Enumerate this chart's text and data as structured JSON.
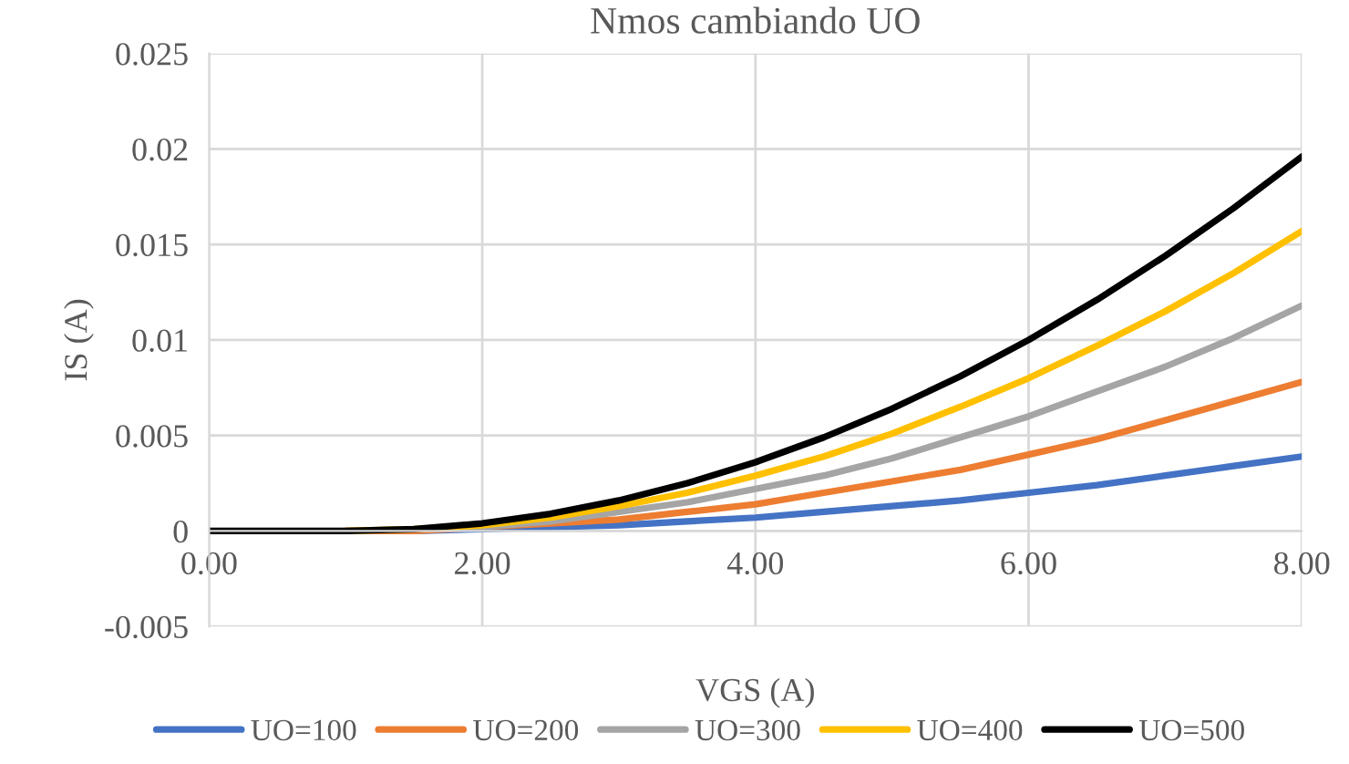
{
  "chart_data": {
    "type": "line",
    "title": "Nmos cambiando UO",
    "xlabel": "VGS (A)",
    "ylabel": "IS (A)",
    "x": [
      0,
      0.5,
      1,
      1.5,
      2,
      2.5,
      3,
      3.5,
      4,
      4.5,
      5,
      5.5,
      6,
      6.5,
      7,
      7.5,
      8
    ],
    "series": [
      {
        "name": "UO=100",
        "color": "#4472c4",
        "values": [
          null,
          null,
          0,
          0,
          0.0001,
          0.0002,
          0.0003,
          0.0005,
          0.0007,
          0.001,
          0.0013,
          0.0016,
          0.002,
          0.0024,
          0.0029,
          0.0034,
          0.0039
        ]
      },
      {
        "name": "UO=200",
        "color": "#ed7d31",
        "values": [
          null,
          null,
          0,
          0,
          0.0002,
          0.0004,
          0.0006,
          0.001,
          0.0014,
          0.002,
          0.0026,
          0.0032,
          0.004,
          0.0048,
          0.0058,
          0.0068,
          0.0078
        ]
      },
      {
        "name": "UO=300",
        "color": "#a5a5a5",
        "values": [
          0,
          0,
          0,
          0.0001,
          0.0002,
          0.0005,
          0.001,
          0.0015,
          0.0022,
          0.0029,
          0.0038,
          0.0049,
          0.006,
          0.0073,
          0.0086,
          0.0101,
          0.0118
        ]
      },
      {
        "name": "UO=400",
        "color": "#ffc000",
        "values": [
          null,
          null,
          0,
          0.0001,
          0.0003,
          0.0007,
          0.0013,
          0.002,
          0.0029,
          0.0039,
          0.0051,
          0.0065,
          0.008,
          0.0097,
          0.0115,
          0.0135,
          0.0157
        ]
      },
      {
        "name": "UO=500",
        "color": "#000000",
        "values": [
          0,
          0,
          0,
          0.0001,
          0.0004,
          0.0009,
          0.0016,
          0.0025,
          0.0036,
          0.0049,
          0.0064,
          0.0081,
          0.01,
          0.0121,
          0.0144,
          0.0169,
          0.0196
        ]
      }
    ],
    "xlim": [
      0,
      8
    ],
    "xticks": [
      {
        "value": 0,
        "label": "0.00"
      },
      {
        "value": 2,
        "label": "2.00"
      },
      {
        "value": 4,
        "label": "4.00"
      },
      {
        "value": 6,
        "label": "6.00"
      },
      {
        "value": 8,
        "label": "8.00"
      }
    ],
    "ylim": [
      -0.005,
      0.025
    ],
    "yticks": [
      -0.005,
      0,
      0.005,
      0.01,
      0.015,
      0.02,
      0.025
    ],
    "grid": true,
    "legend": "bottom",
    "marker": "none",
    "line_style": "solid"
  }
}
